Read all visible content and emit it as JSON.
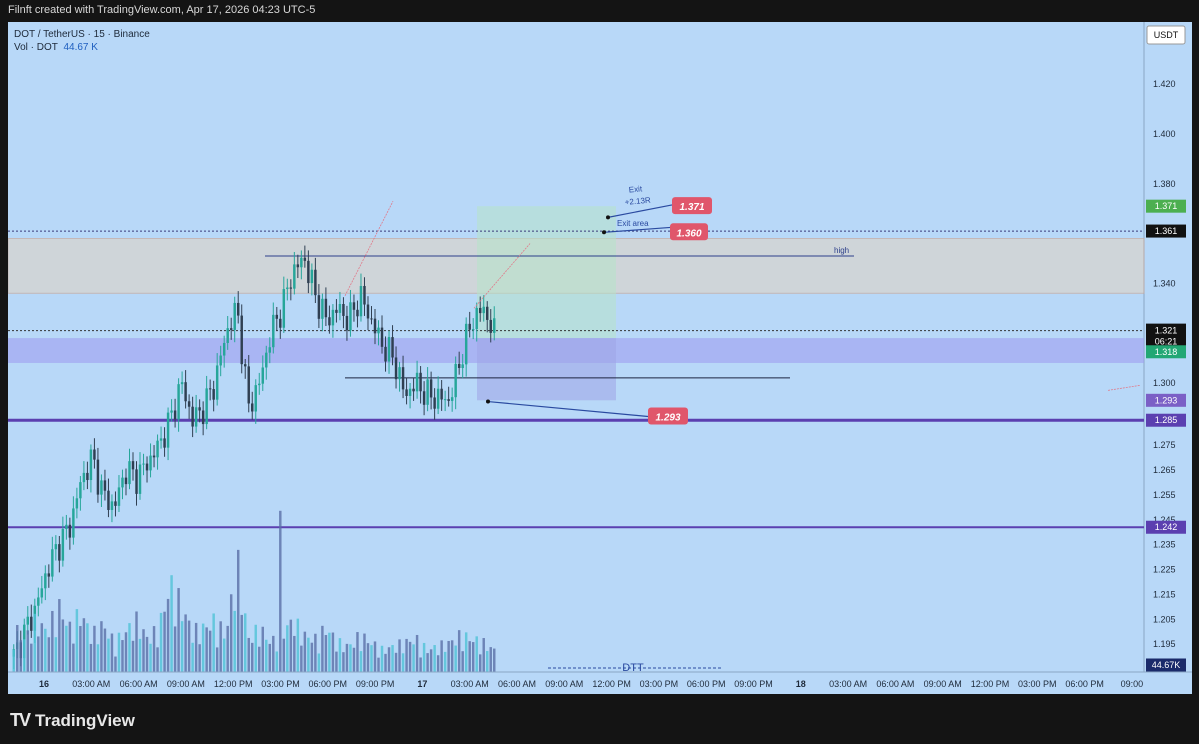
{
  "header": {
    "text": "Filnft created with TradingView.com, Apr 17, 2026 04:23 UTC-5"
  },
  "legend": {
    "symbol": "DOT / TetherUS · 15 · Binance",
    "vol_label": "Vol · DOT",
    "vol_value": "44.67 K"
  },
  "footer": {
    "brand": "TradingView"
  },
  "colors": {
    "background": "#b8d8f8",
    "bull": "#26a69a",
    "bear": "#2f3f52",
    "purple": "#5b3fb0",
    "red_label": "#e0566b"
  },
  "chart_data": {
    "type": "candlestick",
    "currency_label": "USDT",
    "ylim": [
      1.175,
      1.445
    ],
    "y_ticks": [
      "1.420",
      "1.400",
      "1.380",
      "1.340",
      "1.300",
      "1.275",
      "1.265",
      "1.255",
      "1.245",
      "1.235",
      "1.225",
      "1.215",
      "1.205",
      "1.195",
      "1.185"
    ],
    "x_ticks": [
      "16",
      "03:00 AM",
      "06:00 AM",
      "09:00 AM",
      "12:00 PM",
      "03:00 PM",
      "06:00 PM",
      "09:00 PM",
      "17",
      "03:00 AM",
      "06:00 AM",
      "09:00 AM",
      "12:00 PM",
      "03:00 PM",
      "06:00 PM",
      "09:00 PM",
      "18",
      "03:00 AM",
      "06:00 AM",
      "09:00 AM",
      "12:00 PM",
      "03:00 PM",
      "06:00 PM",
      "09:00"
    ],
    "close_path": [
      1.19,
      1.2,
      1.21,
      1.225,
      1.235,
      1.242,
      1.26,
      1.27,
      1.255,
      1.25,
      1.265,
      1.262,
      1.268,
      1.275,
      1.285,
      1.3,
      1.285,
      1.29,
      1.3,
      1.32,
      1.33,
      1.29,
      1.3,
      1.32,
      1.33,
      1.345,
      1.35,
      1.335,
      1.325,
      1.33,
      1.325,
      1.335,
      1.325,
      1.315,
      1.31,
      1.295,
      1.3,
      1.295,
      1.294,
      1.293,
      1.31,
      1.325,
      1.33,
      1.32
    ],
    "volume_path": [
      60,
      45,
      70,
      55,
      90,
      60,
      80,
      50,
      65,
      40,
      55,
      70,
      45,
      60,
      120,
      90,
      55,
      60,
      70,
      50,
      150,
      45,
      60,
      40,
      55,
      70,
      50,
      45,
      60,
      40,
      35,
      50,
      40,
      30,
      35,
      40,
      45,
      30,
      35,
      40,
      50,
      45,
      40,
      30
    ],
    "volume_spike": 260,
    "price_labels": [
      {
        "text": "USDT",
        "kind": "currency"
      },
      {
        "value": "1.371",
        "color": "#4caf50"
      },
      {
        "value": "1.361",
        "color": "#111111"
      },
      {
        "value": "1.321",
        "color": "#111111"
      },
      {
        "value": "06:21",
        "color": "#111111"
      },
      {
        "value": "1.318",
        "color": "#22a774"
      },
      {
        "value": "1.293",
        "color": "#7b5fc6"
      },
      {
        "value": "1.285",
        "color": "#5b3fb0"
      },
      {
        "value": "1.242",
        "color": "#5b3fb0"
      },
      {
        "value": "44.67K",
        "color": "#1a2a6a"
      }
    ],
    "annotations": {
      "exit_label": "Exit",
      "exit_r": "+2.13R",
      "exit_area_label": "Exit area",
      "target_1": "1.371",
      "target_2": "1.360",
      "stop": "1.293",
      "high_label": "high",
      "dtt_label": "DTT"
    },
    "levels": {
      "zone_top": 1.358,
      "zone_bottom": 1.336,
      "support_1": 1.285,
      "support_2": 1.242,
      "dotted_top": 1.361,
      "dotted_mid": 1.321,
      "purple_zone_top": 1.318,
      "purple_zone_bottom": 1.308,
      "mid_line": 1.302
    }
  }
}
